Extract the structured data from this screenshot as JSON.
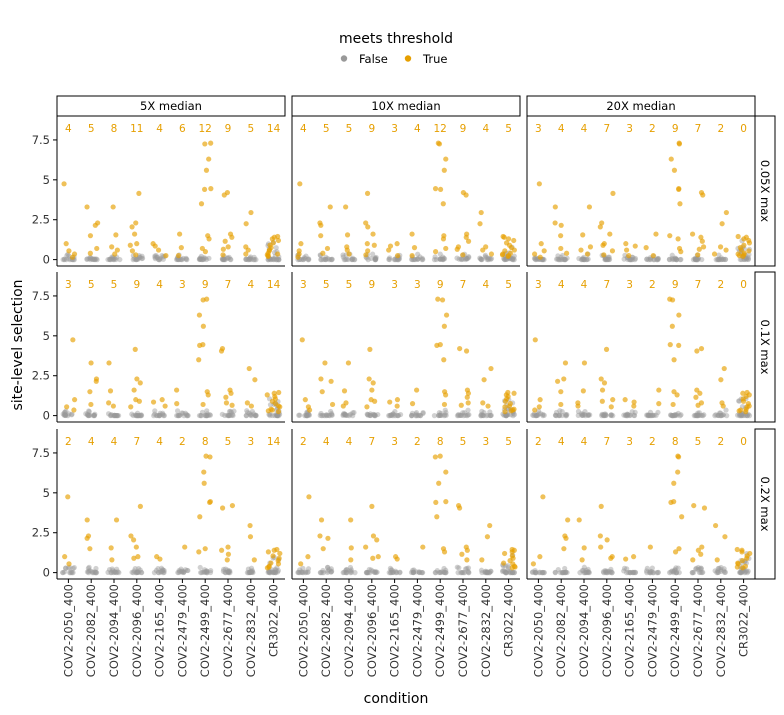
{
  "chart_data": {
    "type": "scatter",
    "legend": {
      "title": "meets threshold",
      "position": "top",
      "entries": [
        {
          "label": "False",
          "color": "#999999"
        },
        {
          "label": "True",
          "color": "#E69F00"
        }
      ]
    },
    "xlabel": "condition",
    "ylabel": "site-level selection",
    "ylim": [
      -0.4,
      9.0
    ],
    "yticks": [
      0,
      2.5,
      5,
      7.5
    ],
    "ytick_labels": [
      "0",
      "2.5",
      "5",
      "7.5"
    ],
    "categories": [
      "COV2-2050_400",
      "COV2-2082_400",
      "COV2-2094_400",
      "COV2-2096_400",
      "COV2-2165_400",
      "COV2-2479_400",
      "COV2-2499_400",
      "COV2-2677_400",
      "COV2-2832_400",
      "CR3022_400"
    ],
    "facet_columns": [
      "5X median",
      "10X median",
      "20X median"
    ],
    "facet_rows": [
      "0.05X max",
      "0.1X max",
      "0.2X max"
    ],
    "count_y": 8.25,
    "counts": [
      [
        [
          4,
          5,
          8,
          11,
          4,
          6,
          12,
          9,
          5,
          14
        ],
        [
          4,
          5,
          5,
          9,
          3,
          4,
          12,
          9,
          4,
          5
        ],
        [
          3,
          4,
          4,
          7,
          3,
          2,
          9,
          7,
          2,
          0
        ]
      ],
      [
        [
          3,
          5,
          5,
          9,
          4,
          3,
          9,
          7,
          4,
          14
        ],
        [
          3,
          5,
          5,
          9,
          3,
          3,
          9,
          7,
          4,
          5
        ],
        [
          3,
          4,
          4,
          7,
          3,
          2,
          9,
          7,
          2,
          0
        ]
      ],
      [
        [
          2,
          4,
          4,
          7,
          4,
          2,
          8,
          5,
          3,
          14
        ],
        [
          2,
          4,
          4,
          7,
          3,
          2,
          8,
          5,
          3,
          5
        ],
        [
          2,
          4,
          4,
          7,
          3,
          2,
          8,
          5,
          2,
          0
        ]
      ]
    ],
    "true_values": [
      [
        4.75,
        1.0,
        0.55,
        0.35,
        0.15
      ],
      [
        3.3,
        2.3,
        2.15,
        1.5,
        0.7,
        0.4
      ],
      [
        3.3,
        1.55,
        0.8,
        0.6,
        0.35
      ],
      [
        4.15,
        2.3,
        2.05,
        1.6,
        1.0,
        0.9,
        0.55,
        0.3
      ],
      [
        1.0,
        0.85,
        0.6,
        0.25
      ],
      [
        1.6,
        0.75,
        0.25
      ],
      [
        7.3,
        7.25,
        6.3,
        5.6,
        4.45,
        4.4,
        3.5,
        1.5,
        1.3,
        0.7,
        0.5
      ],
      [
        4.2,
        4.05,
        1.6,
        1.4,
        1.15,
        0.8,
        0.65,
        0.3
      ],
      [
        2.95,
        2.25,
        0.8,
        0.6,
        0.35
      ],
      [
        1.45,
        1.4,
        1.3,
        1.2,
        1.05,
        0.9,
        0.75,
        0.6,
        0.55,
        0.4,
        0.35,
        0.3,
        0.25,
        0.2
      ]
    ]
  }
}
